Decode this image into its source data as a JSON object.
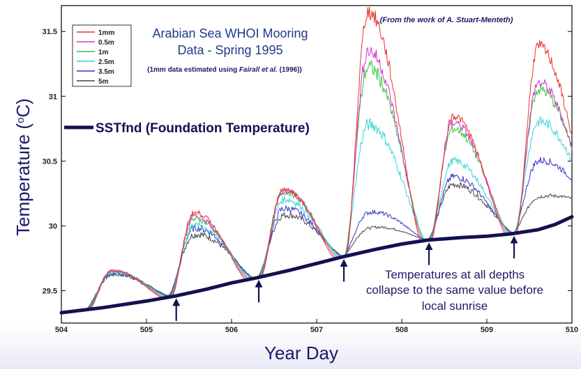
{
  "chart_data": {
    "type": "line",
    "title": [
      "Arabian Sea WHOI Mooring",
      "Data - Spring 1995"
    ],
    "subtitle_parts": [
      "(1mm data estimated using ",
      "Fairall et al.",
      " (1996))"
    ],
    "credit": "(From the work of A. Stuart-Menteth)",
    "xlabel": "Year Day",
    "ylabel": "Temperature (",
    "ylabel_sup": "o",
    "ylabel_end": "C)",
    "xlim": [
      504,
      510
    ],
    "ylim": [
      29.25,
      31.7
    ],
    "xticks": [
      "504",
      "505",
      "506",
      "507",
      "508",
      "509",
      "510"
    ],
    "yticks": [
      "29.5",
      "30",
      "30.5",
      "31",
      "31.5"
    ],
    "series": [
      {
        "name": "1mm",
        "color": "#e8322a"
      },
      {
        "name": "0.5m",
        "color": "#d633d6"
      },
      {
        "name": "1m",
        "color": "#3bc43b"
      },
      {
        "name": "2.5m",
        "color": "#33d6d6"
      },
      {
        "name": "3.5m",
        "color": "#3333c8"
      },
      {
        "name": "5m",
        "color": "#444444"
      }
    ],
    "peaks": {
      "day": [
        504.58,
        505.55,
        506.6,
        507.6,
        508.6,
        509.6
      ],
      "1mm": [
        29.65,
        30.1,
        30.28,
        31.65,
        30.85,
        31.38
      ],
      "0.5m": [
        29.65,
        30.07,
        30.27,
        31.35,
        30.8,
        31.1
      ],
      "1m": [
        29.65,
        30.05,
        30.26,
        31.22,
        30.75,
        31.05
      ],
      "2.5m": [
        29.64,
        30.0,
        30.2,
        30.78,
        30.5,
        30.8
      ],
      "3.5m": [
        29.63,
        29.98,
        30.13,
        30.1,
        30.38,
        30.5
      ],
      "5m": [
        29.62,
        29.93,
        30.08,
        29.98,
        30.32,
        30.22
      ]
    },
    "foundation": {
      "name": "SSTfnd (Foundation Temperature)",
      "color": "#12124f",
      "x": [
        504.0,
        504.5,
        505.0,
        505.35,
        505.7,
        506.0,
        506.3,
        506.7,
        507.0,
        507.3,
        507.7,
        508.0,
        508.3,
        508.7,
        509.0,
        509.3,
        509.6,
        509.8,
        510.0
      ],
      "y": [
        29.33,
        29.37,
        29.42,
        29.46,
        29.51,
        29.56,
        29.6,
        29.66,
        29.71,
        29.76,
        29.82,
        29.86,
        29.89,
        29.91,
        29.92,
        29.94,
        29.97,
        30.01,
        30.07
      ]
    },
    "sunrise_days": [
      505.35,
      506.32,
      507.32,
      508.32,
      509.32
    ],
    "annotation": [
      "Temperatures at all depths",
      "collapse to the same value before",
      "local sunrise"
    ],
    "grid": false,
    "legend_position": "top-left"
  }
}
